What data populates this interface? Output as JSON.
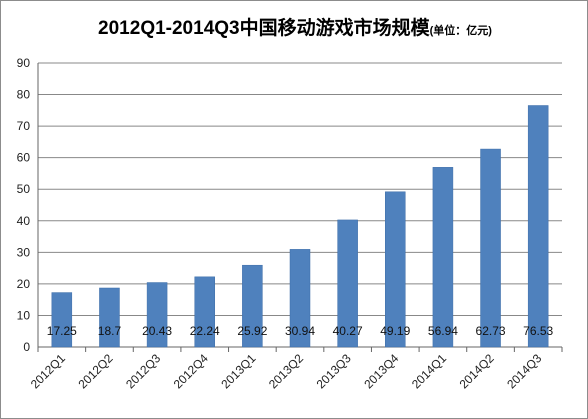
{
  "chart_data": {
    "type": "bar",
    "title": "2012Q1-2014Q3中国移动游戏市场规模",
    "title_unit": "(单位：亿元)",
    "categories": [
      "2012Q1",
      "2012Q2",
      "2012Q3",
      "2012Q4",
      "2013Q1",
      "2013Q2",
      "2013Q3",
      "2013Q4",
      "2014Q1",
      "2014Q2",
      "2014Q3"
    ],
    "values": [
      17.25,
      18.7,
      20.43,
      22.24,
      25.92,
      30.94,
      40.27,
      49.19,
      56.94,
      62.73,
      76.53
    ],
    "data_labels": [
      "17.25",
      "18.7",
      "20.43",
      "22.24",
      "25.92",
      "30.94",
      "40.27",
      "49.19",
      "56.94",
      "62.73",
      "76.53"
    ],
    "ylim": [
      0,
      90
    ],
    "yticks": [
      "0",
      "10",
      "20",
      "30",
      "40",
      "50",
      "60",
      "70",
      "80",
      "90"
    ],
    "grid": true,
    "legend": "none",
    "colors": {
      "bar": "#4f81bd",
      "grid": "#888888",
      "axis": "#666666"
    }
  }
}
